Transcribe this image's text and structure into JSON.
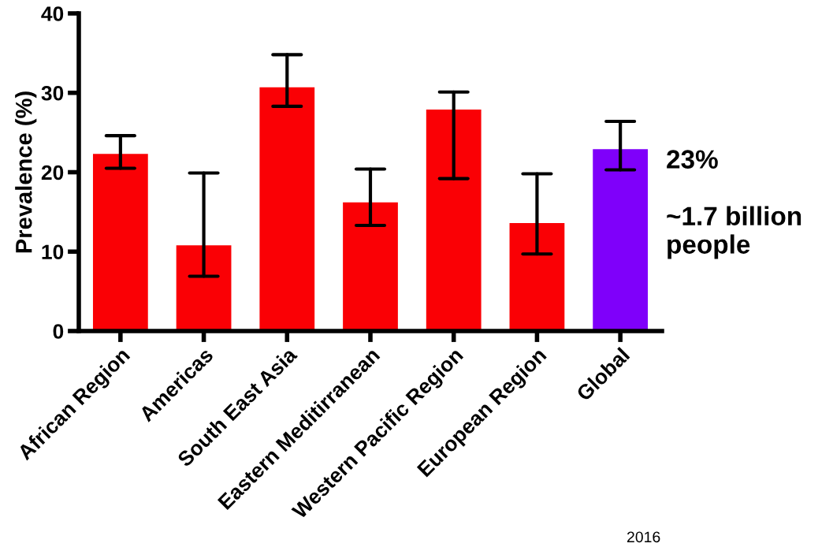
{
  "chart_data": {
    "type": "bar",
    "ylabel": "Prevalence (%)",
    "categories": [
      "African Region",
      "Americas",
      "South East Asia",
      "Eastern Meditirranean",
      "Western Pacific Region",
      "European Region",
      "Global"
    ],
    "values": [
      22.3,
      10.8,
      30.7,
      16.2,
      27.9,
      13.6,
      22.9
    ],
    "colors": [
      "#fa0005",
      "#fa0005",
      "#fa0005",
      "#fa0005",
      "#fa0005",
      "#fa0005",
      "#7f00fa"
    ],
    "errors": [
      [
        20.5,
        24.6
      ],
      [
        6.9,
        19.9
      ],
      [
        28.3,
        34.8
      ],
      [
        13.3,
        20.4
      ],
      [
        19.2,
        30.1
      ],
      [
        9.7,
        19.8
      ],
      [
        20.3,
        26.4
      ]
    ],
    "ylim": [
      0,
      40
    ],
    "yticks": [
      0,
      10,
      20,
      30,
      40
    ],
    "grid": false,
    "legend": false,
    "annotations": [
      "23%",
      "~1.7 billion\npeople",
      "2016"
    ]
  }
}
